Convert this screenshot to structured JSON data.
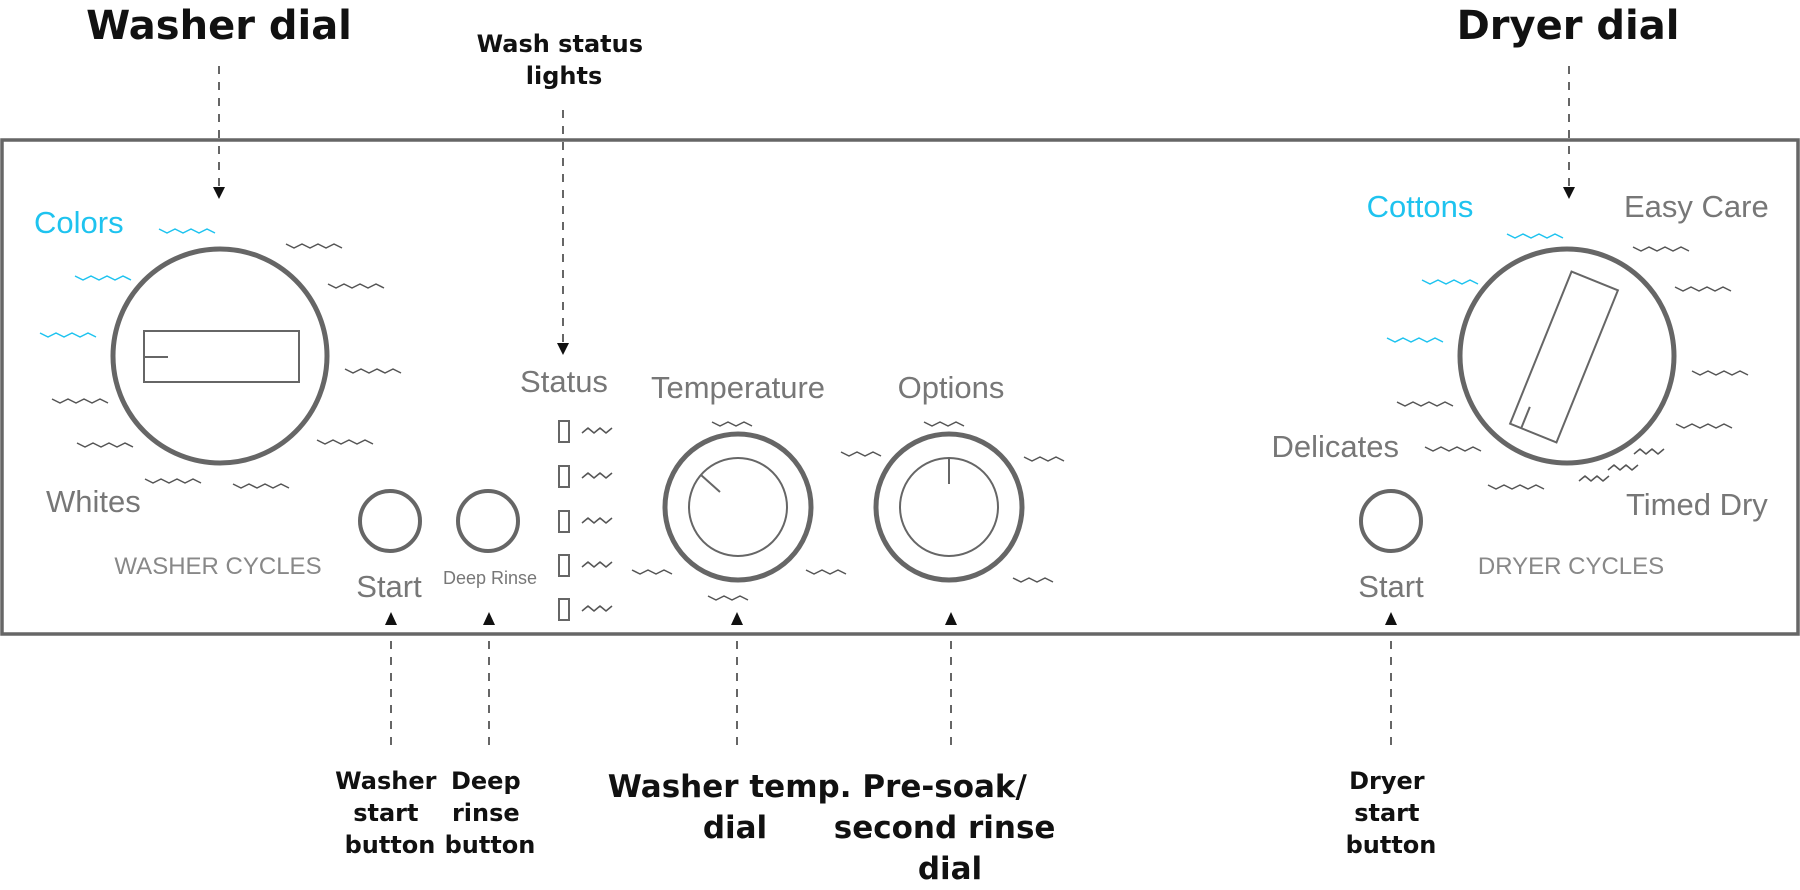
{
  "colors": {
    "highlight": "#1ec3ef",
    "panel_text": "#777777",
    "outline": "#666666",
    "callout_text": "#111111"
  },
  "callouts": {
    "washer_dial": "Washer dial",
    "dryer_dial": "Dryer dial",
    "wash_status_lights": [
      "Wash status",
      "lights"
    ],
    "washer_start_button": [
      "Washer",
      "start",
      "button"
    ],
    "deep_rinse_button": [
      "Deep",
      "rinse",
      "button"
    ],
    "washer_temp_dial": [
      "Washer temp.",
      "dial"
    ],
    "presoak_dial": [
      "Pre-soak/",
      "second rinse",
      "dial"
    ],
    "dryer_start_button": [
      "Dryer",
      "start",
      "button"
    ]
  },
  "panel": {
    "washer": {
      "colors_label": "Colors",
      "whites_label": "Whites",
      "section_label": "WASHER CYCLES",
      "start_label": "Start",
      "deep_rinse_label": "Deep Rinse"
    },
    "status": {
      "label": "Status",
      "light_count": 5
    },
    "temperature": {
      "label": "Temperature"
    },
    "options": {
      "label": "Options"
    },
    "dryer": {
      "cottons_label": "Cottons",
      "easy_care_label": "Easy Care",
      "delicates_label": "Delicates",
      "timed_dry_label": "Timed Dry",
      "section_label": "DRYER CYCLES",
      "start_label": "Start"
    }
  }
}
